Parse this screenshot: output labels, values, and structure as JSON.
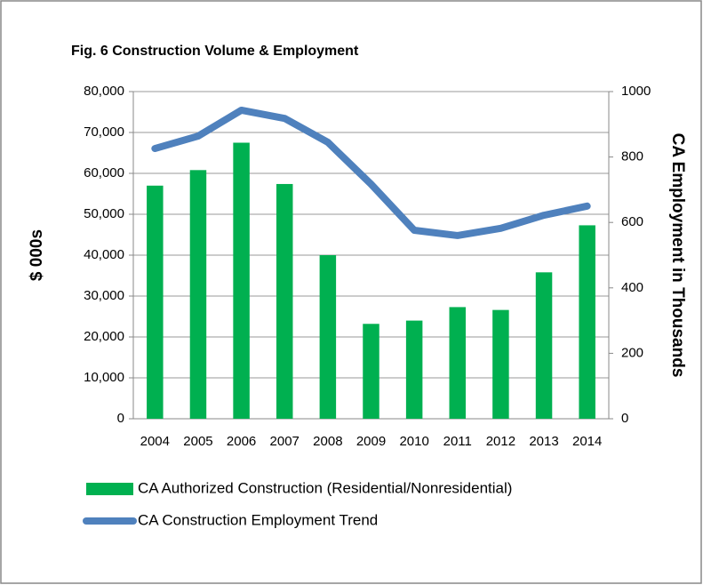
{
  "chart_data": {
    "type": "bar",
    "title": "Fig. 6 Construction Volume & Employment",
    "y_label": "$ 000s",
    "y2_label": "CA Employment in Thousands",
    "categories": [
      "2004",
      "2005",
      "2006",
      "2007",
      "2008",
      "2009",
      "2010",
      "2011",
      "2012",
      "2013",
      "2014"
    ],
    "series": [
      {
        "name": "CA Authorized Construction (Residential/Nonresidential)",
        "color": "#00b050",
        "type": "bar",
        "values": [
          57000,
          60800,
          67500,
          57400,
          40000,
          23200,
          24000,
          27300,
          26600,
          35800,
          47300
        ]
      },
      {
        "name": "CA Construction Employment Trend",
        "color": "#4f81bd",
        "type": "line",
        "axis": "y2",
        "values": [
          826,
          864,
          943,
          918,
          845,
          717,
          576,
          560,
          582,
          622,
          650
        ]
      }
    ],
    "ylim": [
      0,
      80000
    ],
    "yticks": [
      0,
      {
        "value": 10000,
        "label": "10,000"
      },
      {
        "value": 20000,
        "label": "20,000"
      },
      {
        "value": 30000,
        "label": "30,000"
      },
      {
        "value": 40000,
        "label": "40,000"
      },
      {
        "value": 50000,
        "label": "50,000"
      },
      {
        "value": 60000,
        "label": "60,000"
      },
      {
        "value": 70000,
        "label": "70,000"
      },
      {
        "value": 80000,
        "label": "80,000"
      }
    ],
    "y2lim": [
      0,
      1000
    ],
    "y2ticks": [
      0,
      200,
      400,
      600,
      800,
      1000
    ],
    "grid": true
  }
}
